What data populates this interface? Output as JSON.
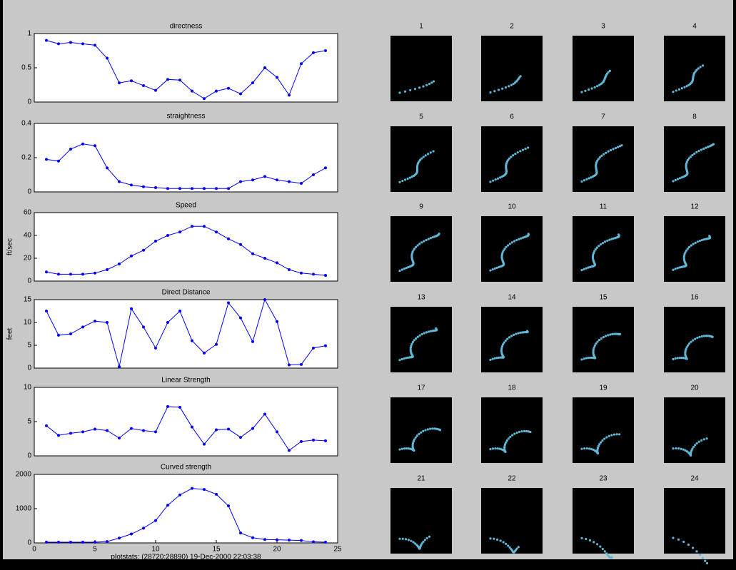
{
  "chart_data": [
    {
      "type": "line",
      "title": "directness",
      "x": [
        1,
        2,
        3,
        4,
        5,
        6,
        7,
        8,
        9,
        10,
        11,
        12,
        13,
        14,
        15,
        16,
        17,
        18,
        19,
        20,
        21,
        22,
        23,
        24
      ],
      "series": [
        {
          "color": "#0000ff",
          "values": [
            0.9,
            0.85,
            0.87,
            0.85,
            0.83,
            0.64,
            0.28,
            0.31,
            0.24,
            0.17,
            0.33,
            0.32,
            0.16,
            0.05,
            0.16,
            0.2,
            0.12,
            0.28,
            0.5,
            0.36,
            0.1,
            0.56,
            0.72,
            0.75
          ]
        }
      ],
      "xlim": [
        0,
        25
      ],
      "ylim": [
        0,
        1
      ],
      "yticks": [
        0,
        0.5,
        1
      ]
    },
    {
      "type": "line",
      "title": "straightness",
      "x": [
        1,
        2,
        3,
        4,
        5,
        6,
        7,
        8,
        9,
        10,
        11,
        12,
        13,
        14,
        15,
        16,
        17,
        18,
        19,
        20,
        21,
        22,
        23,
        24
      ],
      "series": [
        {
          "color": "#0000ff",
          "values": [
            0.19,
            0.18,
            0.25,
            0.28,
            0.27,
            0.14,
            0.06,
            0.04,
            0.03,
            0.025,
            0.02,
            0.02,
            0.02,
            0.02,
            0.02,
            0.02,
            0.06,
            0.07,
            0.09,
            0.07,
            0.06,
            0.05,
            0.1,
            0.14
          ]
        }
      ],
      "xlim": [
        0,
        25
      ],
      "ylim": [
        0,
        0.4
      ],
      "yticks": [
        0,
        0.2,
        0.4
      ]
    },
    {
      "type": "line",
      "title": "Speed",
      "y_label": "ft/sec",
      "x": [
        1,
        2,
        3,
        4,
        5,
        6,
        7,
        8,
        9,
        10,
        11,
        12,
        13,
        14,
        15,
        16,
        17,
        18,
        19,
        20,
        21,
        22,
        23,
        24
      ],
      "series": [
        {
          "color": "#0000ff",
          "values": [
            8,
            6,
            6,
            6,
            7,
            10,
            15,
            22,
            27,
            35,
            40,
            43,
            48,
            48,
            43,
            37,
            32,
            24,
            20,
            16,
            10,
            7,
            6,
            5
          ]
        }
      ],
      "xlim": [
        0,
        25
      ],
      "ylim": [
        0,
        60
      ],
      "yticks": [
        0,
        20,
        40,
        60
      ]
    },
    {
      "type": "line",
      "title": "Direct Distance",
      "y_label": "feet",
      "x": [
        1,
        2,
        3,
        4,
        5,
        6,
        7,
        8,
        9,
        10,
        11,
        12,
        13,
        14,
        15,
        16,
        17,
        18,
        19,
        20,
        21,
        22,
        23,
        24
      ],
      "series": [
        {
          "color": "#0000ff",
          "values": [
            12.5,
            7.2,
            7.5,
            9,
            10.3,
            10,
            0.3,
            13,
            9,
            4.4,
            10,
            12.5,
            6,
            3.3,
            5.2,
            14.3,
            11,
            5.8,
            15,
            10.2,
            0.7,
            0.8,
            4.4,
            4.9
          ]
        }
      ],
      "xlim": [
        0,
        25
      ],
      "ylim": [
        0,
        15
      ],
      "yticks": [
        0,
        5,
        10,
        15
      ]
    },
    {
      "type": "line",
      "title": "Linear Strength",
      "x": [
        1,
        2,
        3,
        4,
        5,
        6,
        7,
        8,
        9,
        10,
        11,
        12,
        13,
        14,
        15,
        16,
        17,
        18,
        19,
        20,
        21,
        22,
        23,
        24
      ],
      "series": [
        {
          "color": "#0000ff",
          "values": [
            4.4,
            3,
            3.3,
            3.5,
            3.9,
            3.7,
            2.6,
            4,
            3.7,
            3.5,
            7.2,
            7.1,
            4.2,
            1.7,
            3.8,
            3.9,
            2.7,
            4,
            6.1,
            3.5,
            0.8,
            2.1,
            2.3,
            2.2
          ]
        }
      ],
      "xlim": [
        0,
        25
      ],
      "ylim": [
        0,
        10
      ],
      "yticks": [
        0,
        5,
        10
      ]
    },
    {
      "type": "line",
      "title": "Curved strength",
      "x_label": "plotstats: (28720:28890) 19-Dec-2000 22:03:38",
      "x": [
        1,
        2,
        3,
        4,
        5,
        6,
        7,
        8,
        9,
        10,
        11,
        12,
        13,
        14,
        15,
        16,
        17,
        18,
        19,
        20,
        21,
        22,
        23,
        24
      ],
      "series": [
        {
          "color": "#0000ff",
          "values": [
            20,
            20,
            20,
            20,
            20,
            40,
            140,
            260,
            430,
            650,
            1100,
            1400,
            1590,
            1560,
            1420,
            1080,
            290,
            150,
            100,
            90,
            80,
            70,
            30,
            20
          ]
        }
      ],
      "xlim": [
        0,
        25
      ],
      "ylim": [
        0,
        2000
      ],
      "yticks": [
        0,
        1000,
        2000
      ],
      "xticks": [
        0,
        5,
        10,
        15,
        20,
        25
      ]
    }
  ],
  "frames": {
    "labels": [
      1,
      2,
      3,
      4,
      5,
      6,
      7,
      8,
      9,
      10,
      11,
      12,
      13,
      14,
      15,
      16,
      17,
      18,
      19,
      20,
      21,
      22,
      23,
      24
    ]
  }
}
